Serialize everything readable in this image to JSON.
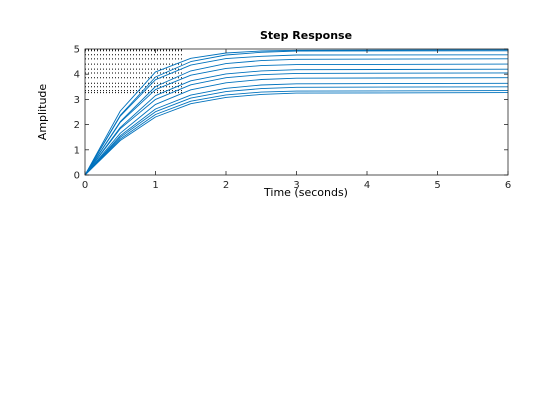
{
  "chart_data": {
    "type": "line",
    "title": "Step Response",
    "xlabel": "Time (seconds)",
    "ylabel": "Amplitude",
    "xlim": [
      0,
      6
    ],
    "ylim": [
      0,
      5
    ],
    "xticks": [
      "0",
      "1",
      "2",
      "3",
      "4",
      "5",
      "6"
    ],
    "yticks": [
      "0",
      "1",
      "2",
      "3",
      "4",
      "5"
    ],
    "grid": false,
    "legend": "none",
    "line_color": "#0072BD",
    "steady_state_marker_color": "#000000",
    "series": [
      {
        "x": [
          0,
          0.5,
          1,
          1.5,
          2,
          2.5,
          3,
          6
        ],
        "y": [
          0,
          2.54,
          4.09,
          4.63,
          4.84,
          4.92,
          4.95,
          4.97
        ]
      },
      {
        "x": [
          0,
          0.5,
          1,
          1.5,
          2,
          2.5,
          3,
          6
        ],
        "y": [
          0,
          2.37,
          3.89,
          4.5,
          4.76,
          4.87,
          4.92,
          4.93
        ]
      },
      {
        "x": [
          0,
          0.5,
          1,
          1.5,
          2,
          2.5,
          3,
          6
        ],
        "y": [
          0,
          2.34,
          3.78,
          4.36,
          4.62,
          4.71,
          4.76,
          4.77
        ]
      },
      {
        "x": [
          0,
          0.5,
          1,
          1.5,
          2,
          2.5,
          3,
          6
        ],
        "y": [
          0,
          2.12,
          3.51,
          4.13,
          4.42,
          4.54,
          4.59,
          4.61
        ]
      },
      {
        "x": [
          0,
          0.5,
          1,
          1.5,
          2,
          2.5,
          3,
          6
        ],
        "y": [
          0,
          2.09,
          3.39,
          3.96,
          4.23,
          4.34,
          4.38,
          4.4
        ]
      },
      {
        "x": [
          0,
          0.5,
          1,
          1.5,
          2,
          2.5,
          3,
          6
        ],
        "y": [
          0,
          1.89,
          3.15,
          3.74,
          4.01,
          4.13,
          4.18,
          4.2
        ]
      },
      {
        "x": [
          0,
          0.5,
          1,
          1.5,
          2,
          2.5,
          3,
          6
        ],
        "y": [
          0,
          1.84,
          3.0,
          3.58,
          3.86,
          3.98,
          4.03,
          4.05
        ]
      },
      {
        "x": [
          0,
          0.5,
          1,
          1.5,
          2,
          2.5,
          3,
          6
        ],
        "y": [
          0,
          1.66,
          2.8,
          3.38,
          3.66,
          3.79,
          3.84,
          3.86
        ]
      },
      {
        "x": [
          0,
          0.5,
          1,
          1.5,
          2,
          2.5,
          3,
          6
        ],
        "y": [
          0,
          1.56,
          2.62,
          3.17,
          3.44,
          3.57,
          3.62,
          3.64
        ]
      },
      {
        "x": [
          0,
          0.5,
          1,
          1.5,
          2,
          2.5,
          3,
          6
        ],
        "y": [
          0,
          1.5,
          2.51,
          3.05,
          3.31,
          3.43,
          3.48,
          3.5
        ]
      },
      {
        "x": [
          0,
          0.5,
          1,
          1.5,
          2,
          2.5,
          3,
          6
        ],
        "y": [
          0,
          1.37,
          2.3,
          2.83,
          3.08,
          3.2,
          3.25,
          3.27
        ]
      },
      {
        "x": [
          0,
          0.5,
          1,
          1.5,
          2,
          2.5,
          3,
          6
        ],
        "y": [
          0,
          1.43,
          2.4,
          2.93,
          3.18,
          3.29,
          3.33,
          3.35
        ]
      }
    ],
    "steady_state_levels": [
      4.97,
      4.93,
      4.77,
      4.61,
      4.4,
      4.2,
      4.05,
      3.86,
      3.64,
      3.5,
      3.35,
      3.27
    ]
  }
}
